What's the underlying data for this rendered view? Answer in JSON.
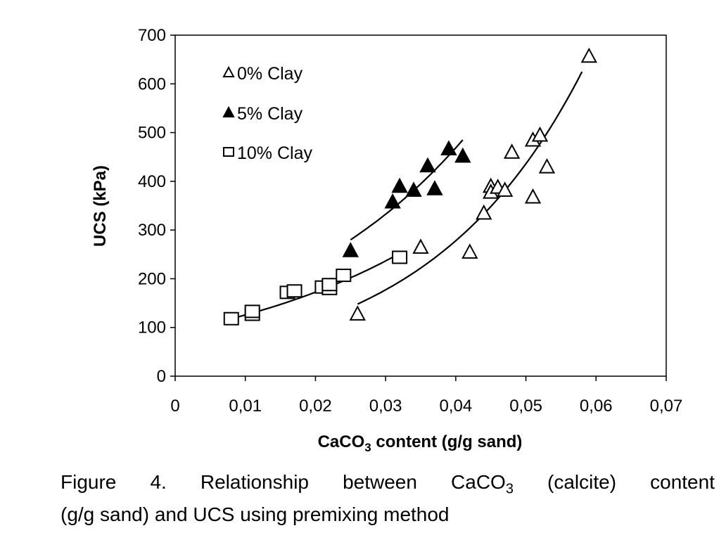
{
  "chart_data": {
    "type": "scatter",
    "xlabel_parts": [
      "CaCO",
      "3",
      " content (g/g sand)"
    ],
    "ylabel": "UCS (kPa)",
    "xlim": [
      0,
      0.07
    ],
    "ylim": [
      0,
      700
    ],
    "x_ticks": [
      0,
      0.01,
      0.02,
      0.03,
      0.04,
      0.05,
      0.06,
      0.07
    ],
    "x_tick_labels": [
      "0",
      "0,01",
      "0,02",
      "0,03",
      "0,04",
      "0,05",
      "0,06",
      "0,07"
    ],
    "y_ticks": [
      0,
      100,
      200,
      300,
      400,
      500,
      600,
      700
    ],
    "y_tick_labels": [
      "0",
      "100",
      "200",
      "300",
      "400",
      "500",
      "600",
      "700"
    ],
    "legend_position": "top-left",
    "series": [
      {
        "name": "0% Clay",
        "marker": "triangle-open",
        "points": [
          [
            0.026,
            128
          ],
          [
            0.035,
            265
          ],
          [
            0.042,
            255
          ],
          [
            0.044,
            335
          ],
          [
            0.045,
            390
          ],
          [
            0.045,
            378
          ],
          [
            0.046,
            388
          ],
          [
            0.047,
            382
          ],
          [
            0.048,
            460
          ],
          [
            0.051,
            485
          ],
          [
            0.052,
            495
          ],
          [
            0.051,
            368
          ],
          [
            0.053,
            430
          ],
          [
            0.059,
            657
          ]
        ],
        "trendline": {
          "x_start": 0.026,
          "x_end": 0.058,
          "y_start": 148,
          "y_end": 625
        }
      },
      {
        "name": "5% Clay",
        "marker": "triangle-filled",
        "points": [
          [
            0.025,
            258
          ],
          [
            0.031,
            358
          ],
          [
            0.032,
            390
          ],
          [
            0.034,
            382
          ],
          [
            0.036,
            432
          ],
          [
            0.037,
            385
          ],
          [
            0.039,
            467
          ],
          [
            0.041,
            452
          ]
        ],
        "trendline": {
          "x_start": 0.025,
          "x_end": 0.041,
          "y_start": 280,
          "y_end": 485
        }
      },
      {
        "name": "10% Clay",
        "marker": "square-open",
        "points": [
          [
            0.008,
            118
          ],
          [
            0.011,
            127
          ],
          [
            0.011,
            133
          ],
          [
            0.016,
            172
          ],
          [
            0.017,
            175
          ],
          [
            0.021,
            183
          ],
          [
            0.022,
            180
          ],
          [
            0.022,
            188
          ],
          [
            0.024,
            207
          ],
          [
            0.032,
            244
          ]
        ],
        "trendline": {
          "x_start": 0.008,
          "x_end": 0.032,
          "y_start": 118,
          "y_end": 252
        }
      }
    ]
  },
  "caption": {
    "line1_words": [
      "Figure",
      "4.",
      "Relationship",
      "between"
    ],
    "line1_formula": [
      "CaCO",
      "3"
    ],
    "line1_tail": [
      "(calcite)",
      "content"
    ],
    "line2": "(g/g sand) and UCS using premixing method"
  }
}
